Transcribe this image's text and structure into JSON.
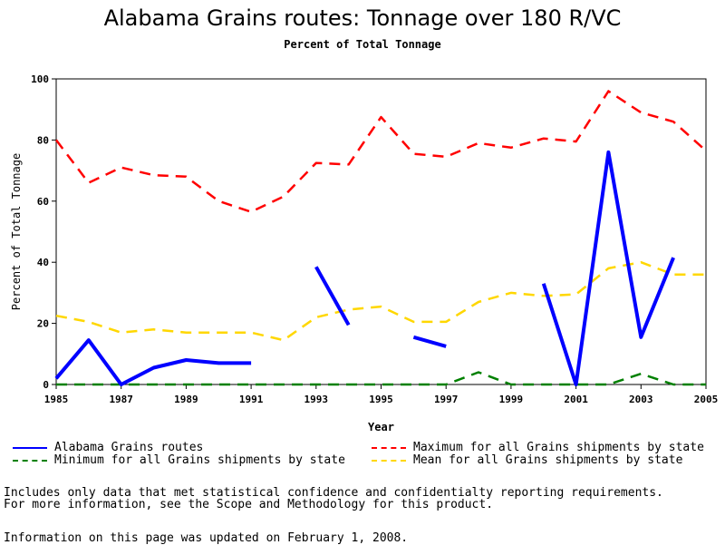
{
  "page": {
    "title": "Alabama Grains routes: Tonnage over 180 R/VC",
    "subtitle": "Percent of Total Tonnage",
    "notes": [
      "Includes only data that met statistical confidence and confidentialty reporting requirements.",
      "For more information, see the Scope and Methodology for this product."
    ],
    "updated": "Information on this page was updated on February 1, 2008."
  },
  "chart_data": {
    "type": "line",
    "title": "Alabama Grains routes: Tonnage over 180 R/VC",
    "subtitle": "Percent of Total Tonnage",
    "xlabel": "Year",
    "ylabel": "Percent of Total Tonnage",
    "xlim": [
      1985,
      2005
    ],
    "ylim": [
      0,
      100
    ],
    "x_ticks": [
      1985,
      1987,
      1989,
      1991,
      1993,
      1995,
      1997,
      1999,
      2001,
      2003,
      2005
    ],
    "y_ticks": [
      0,
      20,
      40,
      60,
      80,
      100
    ],
    "x": [
      1985,
      1986,
      1987,
      1988,
      1989,
      1990,
      1991,
      1992,
      1993,
      1994,
      1995,
      1996,
      1997,
      1998,
      1999,
      2000,
      2001,
      2002,
      2003,
      2004,
      2005
    ],
    "series": [
      {
        "name": "Alabama Grains routes",
        "color": "#0000ff",
        "style": "solid",
        "values": [
          2,
          14.5,
          0,
          5.5,
          8,
          7,
          7,
          null,
          38.5,
          19.5,
          null,
          15.5,
          12.5,
          null,
          null,
          33,
          0,
          76,
          15.5,
          41.5,
          null
        ]
      },
      {
        "name": "Maximum for all Grains shipments by state",
        "color": "#ff0000",
        "style": "dashed",
        "values": [
          80,
          66,
          71,
          68.5,
          68,
          60,
          56.5,
          61.5,
          72.5,
          72,
          87.5,
          75.5,
          74.5,
          79,
          77.5,
          80.5,
          79.5,
          96,
          89,
          86,
          76.5
        ]
      },
      {
        "name": "Minimum for all Grains shipments by state",
        "color": "#008000",
        "style": "dashed",
        "values": [
          0,
          0,
          0,
          0,
          0,
          0,
          0,
          0,
          0,
          0,
          0,
          0,
          0,
          4,
          0,
          0,
          0,
          0,
          3.5,
          0,
          0
        ]
      },
      {
        "name": "Mean for all Grains shipments by state",
        "color": "#ffd700",
        "style": "dashed",
        "values": [
          22.5,
          20.5,
          17,
          18,
          17,
          17,
          17,
          14.5,
          22,
          24.5,
          25.5,
          20.5,
          20.5,
          27,
          30,
          29,
          29.5,
          38,
          40,
          36,
          36
        ]
      }
    ],
    "legend_position": "bottom",
    "grid": false
  }
}
